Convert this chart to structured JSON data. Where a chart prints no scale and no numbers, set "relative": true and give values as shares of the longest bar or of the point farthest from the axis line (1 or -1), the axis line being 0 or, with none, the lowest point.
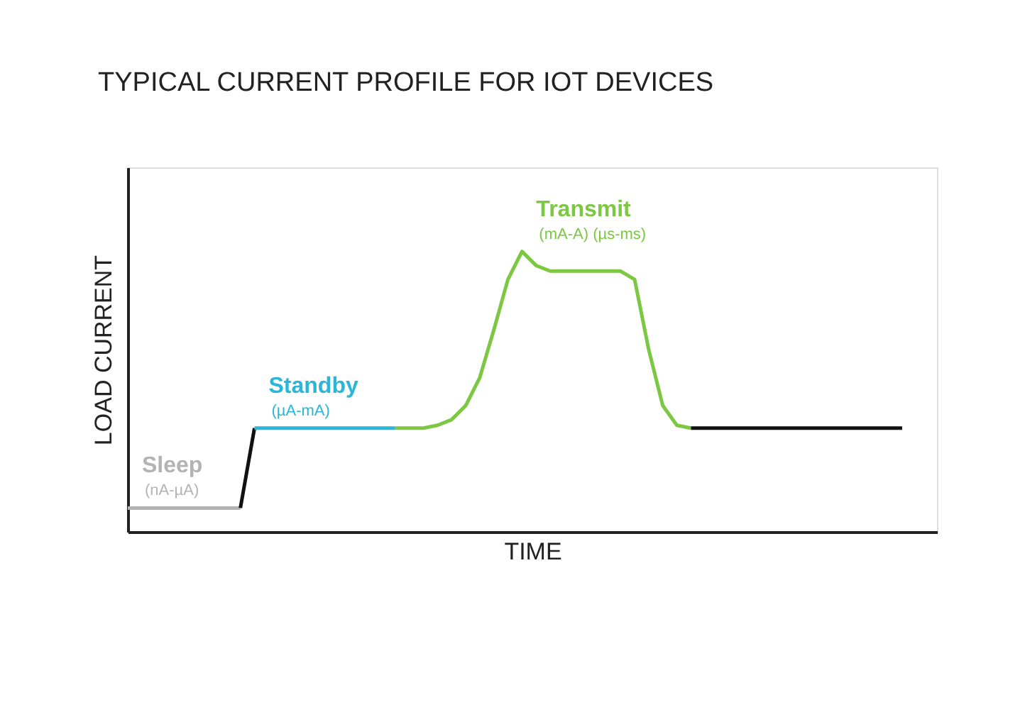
{
  "chart_data": {
    "type": "line",
    "title": "TYPICAL CURRENT PROFILE FOR IOT DEVICES",
    "xlabel": "TIME",
    "ylabel": "LOAD CURRENT",
    "relative": true,
    "grid": false,
    "line_style": "solid",
    "marker": "none",
    "categories": [
      null,
      null,
      null,
      null,
      null,
      null,
      null,
      null,
      null,
      null,
      null,
      null,
      null,
      null,
      null,
      null,
      null,
      null,
      null,
      null,
      null,
      null,
      null,
      null,
      null,
      null,
      null,
      null,
      null,
      null,
      null,
      null,
      null,
      null,
      null,
      null,
      null,
      null,
      null,
      null,
      null,
      null,
      null,
      null,
      null,
      null,
      null,
      null,
      null,
      null,
      null,
      null,
      null,
      null,
      null,
      null
    ],
    "series": [
      {
        "name": "Sleep",
        "color": "#b3b3b3",
        "values": [
          0.085,
          0.085,
          0.085,
          0.085,
          0.085,
          0.085,
          0.085,
          0.085,
          0.085,
          null,
          null,
          null,
          null,
          null,
          null,
          null,
          null,
          null,
          null,
          null,
          null,
          null,
          null,
          null,
          null,
          null,
          null,
          null,
          null,
          null,
          null,
          null,
          null,
          null,
          null,
          null,
          null,
          null,
          null,
          null,
          null,
          null,
          null,
          null,
          null,
          null,
          null,
          null,
          null,
          null,
          null,
          null,
          null,
          null,
          null,
          null
        ]
      },
      {
        "color": "#111111",
        "values": [
          null,
          null,
          null,
          null,
          null,
          null,
          null,
          null,
          0.085,
          0.37,
          null,
          null,
          null,
          null,
          null,
          null,
          null,
          null,
          null,
          null,
          null,
          null,
          null,
          null,
          null,
          null,
          null,
          null,
          null,
          null,
          null,
          null,
          null,
          null,
          null,
          null,
          null,
          null,
          null,
          null,
          null,
          null,
          null,
          null,
          null,
          null,
          null,
          null,
          null,
          null,
          null,
          null,
          null,
          null,
          null,
          null
        ]
      },
      {
        "name": "Standby",
        "color": "#29b6d9",
        "values": [
          null,
          null,
          null,
          null,
          null,
          null,
          null,
          null,
          null,
          0.37,
          0.37,
          0.37,
          0.37,
          0.37,
          0.37,
          0.37,
          0.37,
          0.37,
          0.37,
          0.37,
          null,
          null,
          null,
          null,
          null,
          null,
          null,
          null,
          null,
          null,
          null,
          null,
          null,
          null,
          null,
          null,
          null,
          null,
          null,
          null,
          null,
          null,
          null,
          null,
          null,
          null,
          null,
          null,
          null,
          null,
          null,
          null,
          null,
          null,
          null,
          null
        ]
      },
      {
        "name": "Transmit",
        "color": "#7cc843",
        "values": [
          null,
          null,
          null,
          null,
          null,
          null,
          null,
          null,
          null,
          null,
          null,
          null,
          null,
          null,
          null,
          null,
          null,
          null,
          null,
          0.37,
          0.37,
          0.37,
          0.38,
          0.4,
          0.45,
          0.55,
          0.72,
          0.9,
          1.0,
          0.95,
          0.93,
          0.93,
          0.93,
          0.93,
          0.93,
          0.93,
          0.9,
          0.65,
          0.45,
          0.38,
          0.37,
          null,
          null,
          null,
          null,
          null,
          null,
          null,
          null,
          null,
          null,
          null,
          null,
          null,
          null,
          null
        ]
      },
      {
        "color": "#111111",
        "values": [
          null,
          null,
          null,
          null,
          null,
          null,
          null,
          null,
          null,
          null,
          null,
          null,
          null,
          null,
          null,
          null,
          null,
          null,
          null,
          null,
          null,
          null,
          null,
          null,
          null,
          null,
          null,
          null,
          null,
          null,
          null,
          null,
          null,
          null,
          null,
          null,
          null,
          null,
          null,
          null,
          0.37,
          0.37,
          0.37,
          0.37,
          0.37,
          0.37,
          0.37,
          0.37,
          0.37,
          0.37,
          0.37,
          0.37,
          0.37,
          0.37,
          0.37,
          0.37
        ]
      }
    ],
    "annotations": [
      "(nA-µA)",
      "(µA-mA)",
      "(mA-A)  (µs-ms)"
    ]
  }
}
